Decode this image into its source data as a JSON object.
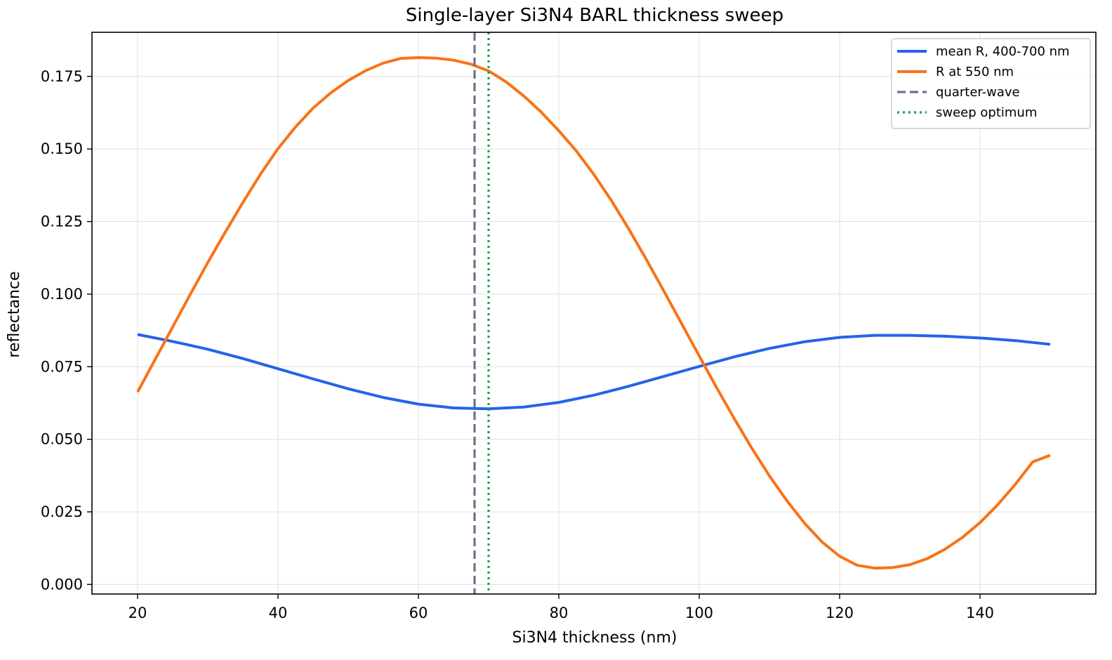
{
  "chart_data": {
    "type": "line",
    "title": "Single-layer Si3N4 BARL thickness sweep",
    "xlabel": "Si3N4 thickness (nm)",
    "ylabel": "reflectance",
    "xlim": [
      13.5,
      156.5
    ],
    "ylim": [
      -0.0033,
      0.1902
    ],
    "xticks": [
      20,
      40,
      60,
      80,
      100,
      120,
      140
    ],
    "yticks": [
      0.0,
      0.025,
      0.05,
      0.075,
      0.1,
      0.125,
      0.15,
      0.175
    ],
    "xtick_labels": [
      "20",
      "40",
      "60",
      "80",
      "100",
      "120",
      "140"
    ],
    "ytick_labels": [
      "0.000",
      "0.025",
      "0.050",
      "0.075",
      "0.100",
      "0.125",
      "0.150",
      "0.175"
    ],
    "grid": true,
    "legend_position": "top-right",
    "series": [
      {
        "name": "mean R, 400-700 nm",
        "color": "#2563eb",
        "style": "solid",
        "x": [
          20,
          25,
          30,
          35,
          40,
          45,
          50,
          55,
          60,
          65,
          70,
          75,
          80,
          85,
          90,
          95,
          100,
          105,
          110,
          115,
          120,
          125,
          130,
          135,
          140,
          145,
          150
        ],
        "y": [
          0.0861,
          0.0837,
          0.081,
          0.0778,
          0.0743,
          0.0708,
          0.0674,
          0.0644,
          0.0621,
          0.0608,
          0.0605,
          0.0611,
          0.0627,
          0.0652,
          0.0683,
          0.0717,
          0.0751,
          0.0784,
          0.0813,
          0.0836,
          0.0851,
          0.0858,
          0.0858,
          0.0855,
          0.0849,
          0.084,
          0.0827
        ]
      },
      {
        "name": "R at 550 nm",
        "color": "#f97316",
        "style": "solid",
        "x": [
          20,
          22.5,
          25,
          27.5,
          30,
          32.5,
          35,
          37.5,
          40,
          42.5,
          45,
          47.5,
          50,
          52.5,
          55,
          57.5,
          60,
          62.5,
          65,
          67.5,
          70,
          72.5,
          75,
          77.5,
          80,
          82.5,
          85,
          87.5,
          90,
          92.5,
          95,
          97.5,
          100,
          102.5,
          105,
          107.5,
          110,
          112.5,
          115,
          117.5,
          120,
          122.5,
          125,
          127.5,
          130,
          132.5,
          135,
          137.5,
          140,
          142.5,
          145,
          147.5,
          150
        ],
        "y": [
          0.0663,
          0.0775,
          0.0887,
          0.0999,
          0.1109,
          0.1214,
          0.1316,
          0.1413,
          0.1501,
          0.1576,
          0.1641,
          0.1693,
          0.1736,
          0.177,
          0.1796,
          0.1812,
          0.1815,
          0.1813,
          0.1806,
          0.1792,
          0.1769,
          0.1731,
          0.1683,
          0.1627,
          0.1563,
          0.1493,
          0.1412,
          0.1322,
          0.1223,
          0.1118,
          0.1009,
          0.0898,
          0.0787,
          0.0677,
          0.0571,
          0.0469,
          0.0374,
          0.0288,
          0.0211,
          0.0146,
          0.0097,
          0.0066,
          0.0056,
          0.0058,
          0.0068,
          0.0089,
          0.0121,
          0.0162,
          0.0213,
          0.0274,
          0.0344,
          0.0422,
          0.0445
        ]
      },
      {
        "name": "quarter-wave",
        "color": "#64748b",
        "style": "dashed",
        "vline_x": 68
      },
      {
        "name": "sweep optimum",
        "color": "#16a34a",
        "style": "dotted",
        "vline_x": 70
      }
    ]
  }
}
